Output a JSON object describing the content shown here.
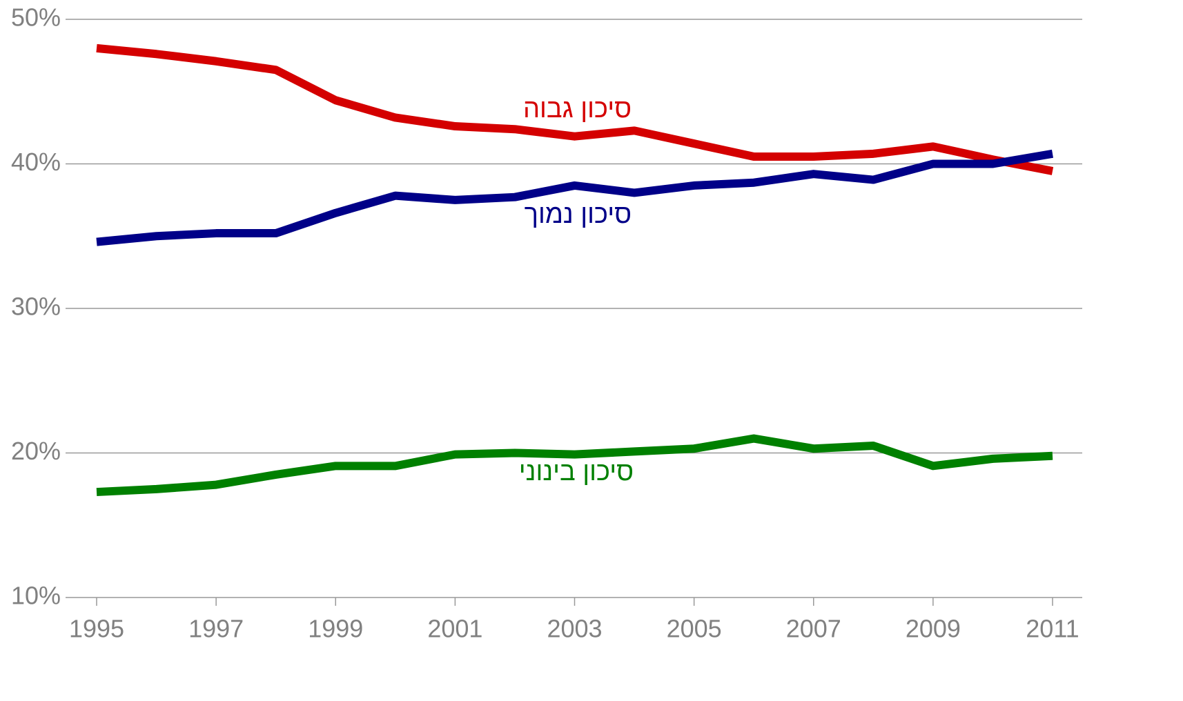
{
  "chart_data": {
    "type": "line",
    "x": [
      1995,
      1996,
      1997,
      1998,
      1999,
      2000,
      2001,
      2002,
      2003,
      2004,
      2005,
      2006,
      2007,
      2008,
      2009,
      2010,
      2011
    ],
    "series": [
      {
        "name": "סיכון גבוה",
        "color": "#d40000",
        "values": [
          48.0,
          47.6,
          47.1,
          46.5,
          44.4,
          43.2,
          42.6,
          42.4,
          41.9,
          42.3,
          41.4,
          40.5,
          40.5,
          40.7,
          41.2,
          40.3,
          39.5
        ]
      },
      {
        "name": "סיכון נמוך",
        "color": "#000088",
        "values": [
          34.6,
          35.0,
          35.2,
          35.2,
          36.6,
          37.8,
          37.5,
          37.7,
          38.5,
          38.0,
          38.5,
          38.7,
          39.3,
          38.9,
          40.0,
          40.0,
          40.7
        ]
      },
      {
        "name": "סיכון בינוני",
        "color": "#008000",
        "values": [
          17.3,
          17.5,
          17.8,
          18.5,
          19.1,
          19.1,
          19.9,
          20.0,
          19.9,
          20.1,
          20.3,
          21.0,
          20.3,
          20.5,
          19.1,
          19.6,
          19.8
        ]
      }
    ],
    "xlim": [
      1995,
      2011
    ],
    "xticks": [
      1995,
      1997,
      1999,
      2001,
      2003,
      2005,
      2007,
      2009,
      2011
    ],
    "ylim": [
      10,
      50
    ],
    "yticks": [
      {
        "value": 10,
        "label": "10%"
      },
      {
        "value": 20,
        "label": "20%"
      },
      {
        "value": 30,
        "label": "30%"
      },
      {
        "value": 40,
        "label": "40%"
      },
      {
        "value": 50,
        "label": "50%"
      }
    ],
    "grid": true
  }
}
